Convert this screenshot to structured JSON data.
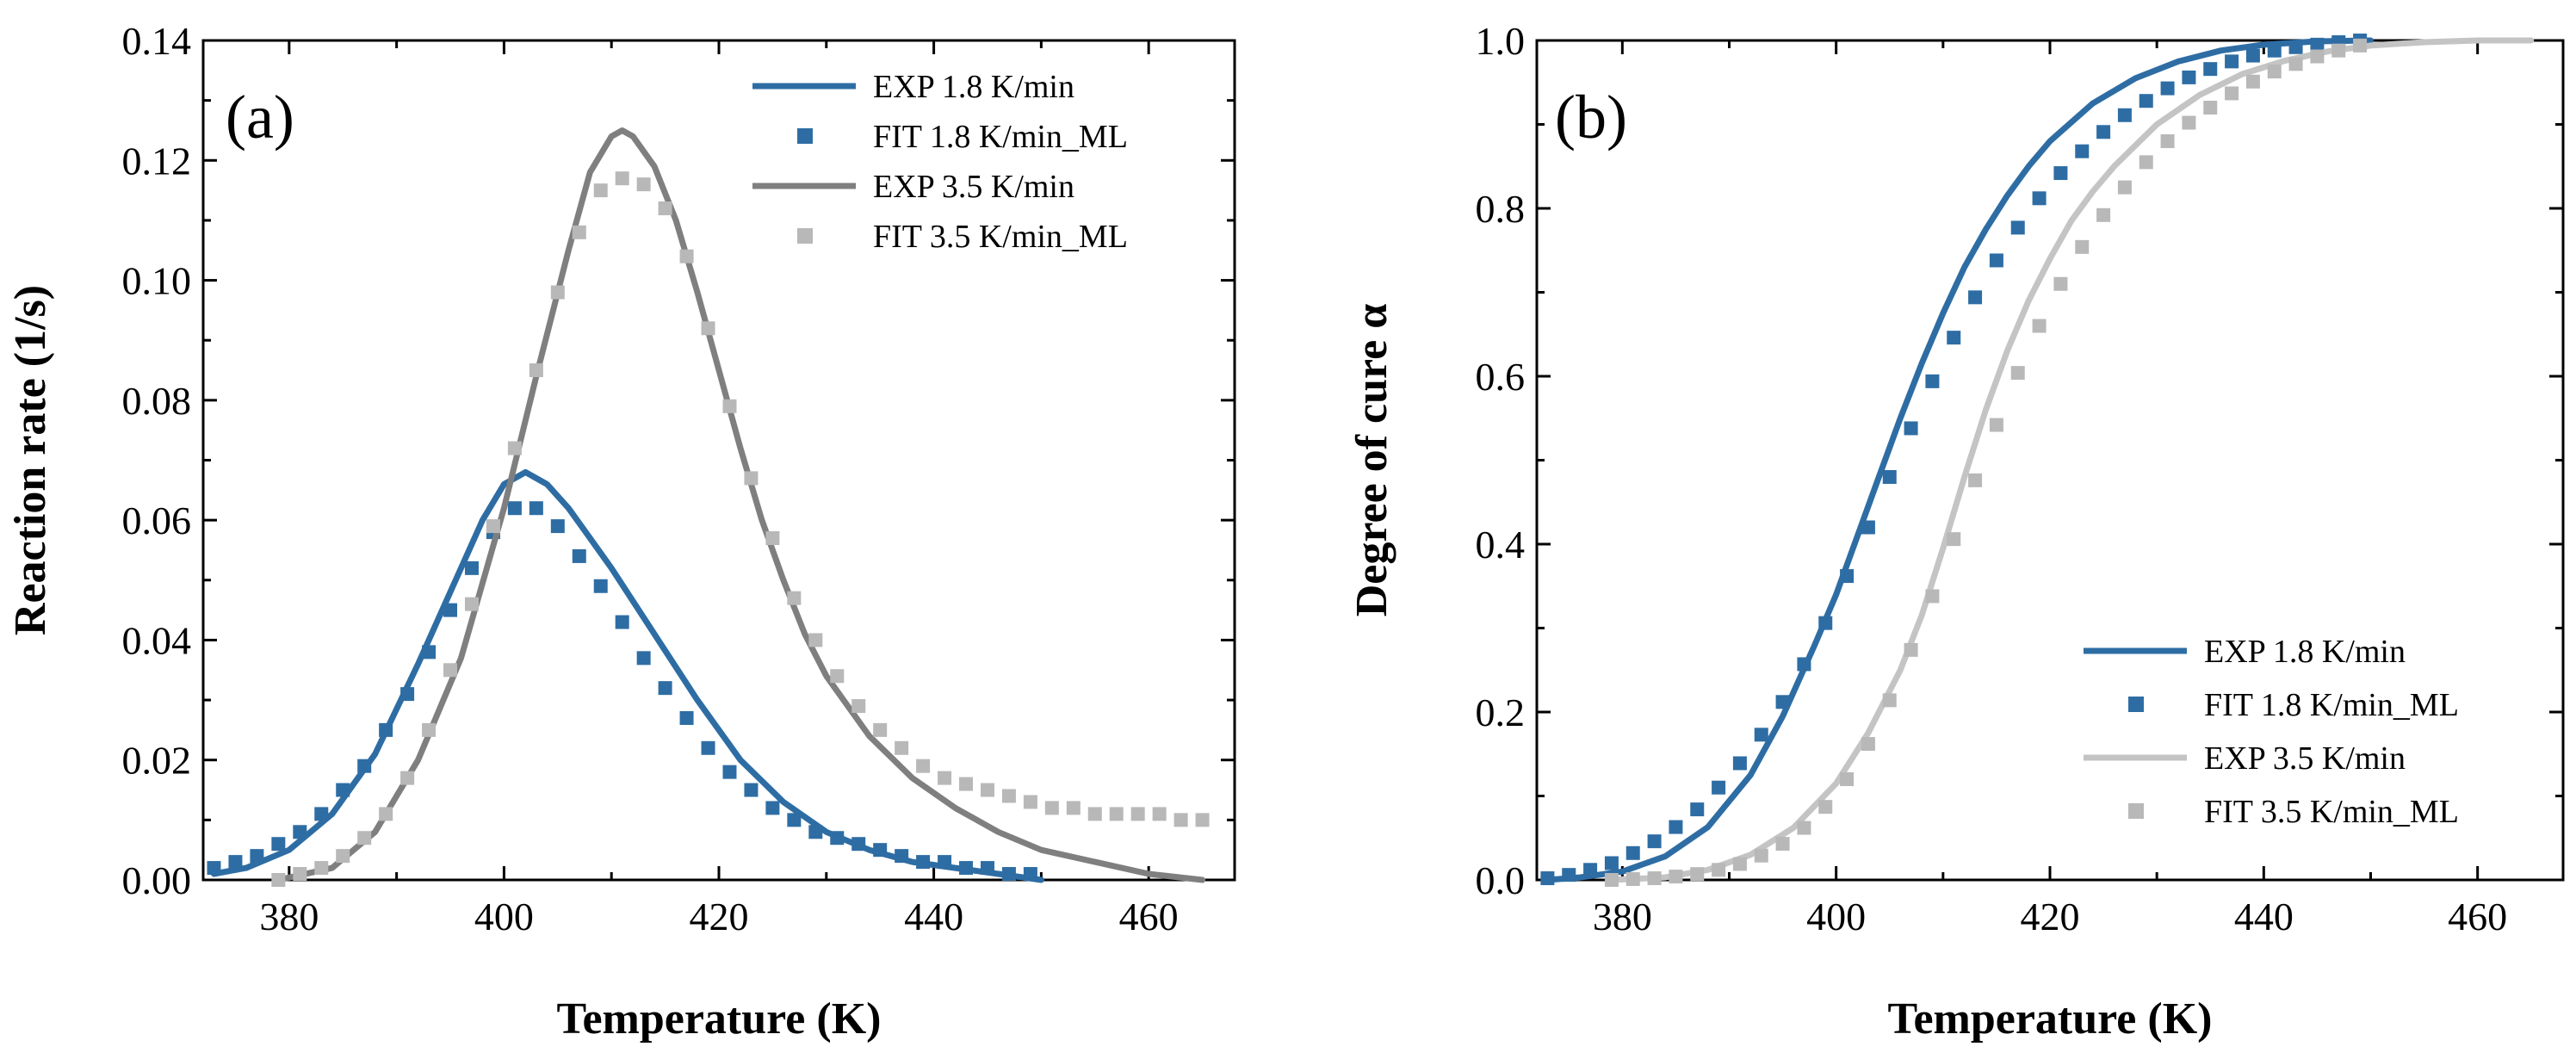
{
  "chart_data": [
    {
      "type": "line",
      "panel_label": "(a)",
      "xlabel": "Temperature (K)",
      "ylabel": "Reaction rate (1/s)",
      "xlim": [
        372,
        468
      ],
      "ylim": [
        0,
        0.14
      ],
      "xticks": [
        380,
        400,
        420,
        440,
        460
      ],
      "xtick_labels": [
        "380",
        "400",
        "420",
        "440",
        "460"
      ],
      "yticks": [
        0,
        0.02,
        0.04,
        0.06,
        0.08,
        0.1,
        0.12,
        0.14
      ],
      "ytick_labels": [
        "0.00",
        "0.02",
        "0.04",
        "0.06",
        "0.08",
        "0.10",
        "0.12",
        "0.14"
      ],
      "legend_position": "top-right",
      "series": [
        {
          "name": "EXP 1.8 K/min",
          "style": "line",
          "color": "#2e6da4",
          "x": [
            373,
            376,
            380,
            384,
            388,
            392,
            395,
            398,
            400,
            402,
            404,
            406,
            408,
            410,
            414,
            418,
            422,
            426,
            430,
            434,
            438,
            442,
            446,
            450
          ],
          "y": [
            0.001,
            0.002,
            0.005,
            0.011,
            0.021,
            0.036,
            0.048,
            0.06,
            0.066,
            0.068,
            0.066,
            0.062,
            0.057,
            0.052,
            0.041,
            0.03,
            0.02,
            0.013,
            0.008,
            0.005,
            0.003,
            0.002,
            0.001,
            0.0
          ]
        },
        {
          "name": "FIT 1.8 K/min_ML",
          "style": "markers",
          "color": "#2e6da4",
          "x": [
            373,
            375,
            377,
            379,
            381,
            383,
            385,
            387,
            389,
            391,
            393,
            395,
            397,
            399,
            401,
            403,
            405,
            407,
            409,
            411,
            413,
            415,
            417,
            419,
            421,
            423,
            425,
            427,
            429,
            431,
            433,
            435,
            437,
            439,
            441,
            443,
            445,
            447,
            449
          ],
          "y": [
            0.002,
            0.003,
            0.004,
            0.006,
            0.008,
            0.011,
            0.015,
            0.019,
            0.025,
            0.031,
            0.038,
            0.045,
            0.052,
            0.058,
            0.062,
            0.062,
            0.059,
            0.054,
            0.049,
            0.043,
            0.037,
            0.032,
            0.027,
            0.022,
            0.018,
            0.015,
            0.012,
            0.01,
            0.008,
            0.007,
            0.006,
            0.005,
            0.004,
            0.003,
            0.003,
            0.002,
            0.002,
            0.001,
            0.001
          ]
        },
        {
          "name": "EXP 3.5 K/min",
          "style": "line",
          "color": "#7f7f7f",
          "x": [
            379,
            384,
            388,
            392,
            396,
            400,
            403,
            406,
            408,
            410,
            411,
            412,
            414,
            416,
            418,
            420,
            422,
            424,
            426,
            428,
            430,
            434,
            438,
            442,
            446,
            450,
            455,
            460,
            465
          ],
          "y": [
            0.0,
            0.002,
            0.008,
            0.02,
            0.037,
            0.062,
            0.084,
            0.105,
            0.118,
            0.124,
            0.125,
            0.124,
            0.119,
            0.11,
            0.098,
            0.085,
            0.072,
            0.06,
            0.05,
            0.041,
            0.034,
            0.024,
            0.017,
            0.012,
            0.008,
            0.005,
            0.003,
            0.001,
            0.0
          ]
        },
        {
          "name": "FIT 3.5 K/min_ML",
          "style": "markers",
          "color": "#b8b8b8",
          "x": [
            379,
            381,
            383,
            385,
            387,
            389,
            391,
            393,
            395,
            397,
            399,
            401,
            403,
            405,
            407,
            409,
            411,
            413,
            415,
            417,
            419,
            421,
            423,
            425,
            427,
            429,
            431,
            433,
            435,
            437,
            439,
            441,
            443,
            445,
            447,
            449,
            451,
            453,
            455,
            457,
            459,
            461,
            463,
            465
          ],
          "y": [
            0.0,
            0.001,
            0.002,
            0.004,
            0.007,
            0.011,
            0.017,
            0.025,
            0.035,
            0.046,
            0.059,
            0.072,
            0.085,
            0.098,
            0.108,
            0.115,
            0.117,
            0.116,
            0.112,
            0.104,
            0.092,
            0.079,
            0.067,
            0.057,
            0.047,
            0.04,
            0.034,
            0.029,
            0.025,
            0.022,
            0.019,
            0.017,
            0.016,
            0.015,
            0.014,
            0.013,
            0.012,
            0.012,
            0.011,
            0.011,
            0.011,
            0.011,
            0.01,
            0.01
          ]
        }
      ]
    },
    {
      "type": "line",
      "panel_label": "(b)",
      "xlabel": "Temperature (K)",
      "ylabel": "Degree of cure α",
      "xlim": [
        372,
        468
      ],
      "ylim": [
        0,
        1.0
      ],
      "xticks": [
        380,
        400,
        420,
        440,
        460
      ],
      "xtick_labels": [
        "380",
        "400",
        "420",
        "440",
        "460"
      ],
      "yticks": [
        0,
        0.2,
        0.4,
        0.6,
        0.8,
        1.0
      ],
      "ytick_labels": [
        "0.0",
        "0.2",
        "0.4",
        "0.6",
        "0.8",
        "1.0"
      ],
      "legend_position": "bottom-right",
      "series": [
        {
          "name": "EXP 1.8 K/min",
          "style": "line",
          "color": "#2e6da4",
          "x": [
            373,
            376,
            380,
            384,
            388,
            392,
            395,
            398,
            400,
            402,
            404,
            406,
            408,
            410,
            412,
            414,
            416,
            418,
            420,
            424,
            428,
            432,
            436,
            440,
            445,
            450
          ],
          "y": [
            0.0,
            0.003,
            0.01,
            0.028,
            0.063,
            0.125,
            0.195,
            0.28,
            0.34,
            0.41,
            0.48,
            0.55,
            0.615,
            0.675,
            0.73,
            0.775,
            0.815,
            0.85,
            0.88,
            0.925,
            0.955,
            0.975,
            0.988,
            0.995,
            0.999,
            1.0
          ]
        },
        {
          "name": "FIT 1.8 K/min_ML",
          "style": "markers",
          "color": "#2e6da4",
          "x": [
            373,
            375,
            377,
            379,
            381,
            383,
            385,
            387,
            389,
            391,
            393,
            395,
            397,
            399,
            401,
            403,
            405,
            407,
            409,
            411,
            413,
            415,
            417,
            419,
            421,
            423,
            425,
            427,
            429,
            431,
            433,
            435,
            437,
            439,
            441,
            443,
            445,
            447,
            449
          ],
          "y": [
            0.002,
            0.006,
            0.012,
            0.02,
            0.032,
            0.046,
            0.063,
            0.084,
            0.11,
            0.139,
            0.173,
            0.212,
            0.257,
            0.306,
            0.362,
            0.42,
            0.48,
            0.538,
            0.594,
            0.646,
            0.694,
            0.738,
            0.777,
            0.812,
            0.842,
            0.868,
            0.891,
            0.911,
            0.928,
            0.943,
            0.956,
            0.966,
            0.975,
            0.982,
            0.988,
            0.992,
            0.995,
            0.998,
            1.0
          ]
        },
        {
          "name": "EXP 3.5 K/min",
          "style": "line",
          "color": "#c4c4c4",
          "x": [
            379,
            384,
            388,
            392,
            396,
            400,
            403,
            406,
            408,
            410,
            412,
            414,
            416,
            418,
            420,
            422,
            424,
            426,
            428,
            430,
            434,
            438,
            442,
            446,
            450,
            455,
            460,
            465
          ],
          "y": [
            0.0,
            0.003,
            0.012,
            0.03,
            0.062,
            0.115,
            0.175,
            0.25,
            0.315,
            0.395,
            0.48,
            0.56,
            0.63,
            0.69,
            0.74,
            0.785,
            0.82,
            0.85,
            0.875,
            0.9,
            0.935,
            0.96,
            0.976,
            0.987,
            0.994,
            0.998,
            1.0,
            1.0
          ]
        },
        {
          "name": "FIT 3.5 K/min_ML",
          "style": "markers",
          "color": "#b8b8b8",
          "x": [
            379,
            381,
            383,
            385,
            387,
            389,
            391,
            393,
            395,
            397,
            399,
            401,
            403,
            405,
            407,
            409,
            411,
            413,
            415,
            417,
            419,
            421,
            423,
            425,
            427,
            429,
            431,
            433,
            435,
            437,
            439,
            441,
            443,
            445,
            447,
            449
          ],
          "y": [
            0.0,
            0.001,
            0.002,
            0.004,
            0.007,
            0.012,
            0.019,
            0.029,
            0.043,
            0.062,
            0.087,
            0.12,
            0.162,
            0.214,
            0.274,
            0.338,
            0.406,
            0.476,
            0.542,
            0.604,
            0.66,
            0.71,
            0.754,
            0.792,
            0.825,
            0.855,
            0.88,
            0.902,
            0.92,
            0.937,
            0.951,
            0.963,
            0.972,
            0.981,
            0.988,
            0.994
          ]
        }
      ]
    }
  ]
}
